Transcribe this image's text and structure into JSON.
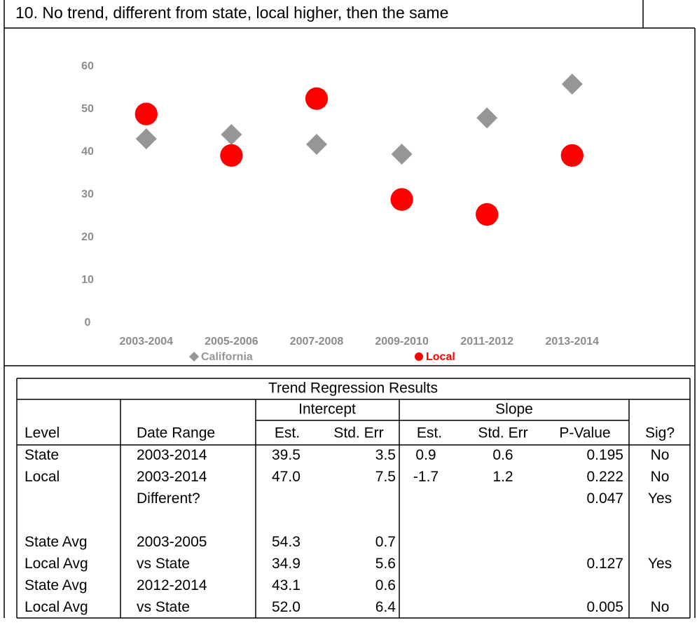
{
  "chart_data": {
    "type": "scatter",
    "title": "10. No trend, different from state, local higher, then the same",
    "categories": [
      "2003-2004",
      "2005-2006",
      "2007-2008",
      "2009-2010",
      "2011-2012",
      "2013-2014"
    ],
    "series": [
      {
        "name": "California",
        "color": "#969696",
        "marker": "diamond",
        "values": [
          43.1,
          44.1,
          41.8,
          39.5,
          48.0,
          55.9
        ]
      },
      {
        "name": "Local",
        "color": "#ff0000",
        "marker": "circle",
        "values": [
          48.9,
          39.2,
          52.5,
          28.9,
          25.4,
          39.2
        ]
      }
    ],
    "ylim": [
      0,
      60
    ],
    "yticks": [
      0,
      10,
      20,
      30,
      40,
      50,
      60
    ],
    "grid": false
  },
  "table": {
    "title": "Trend Regression Results",
    "groups": [
      "Intercept",
      "Slope"
    ],
    "headers": [
      "Level",
      "Date Range",
      "Est.",
      "Std. Err",
      "Est.",
      "Std. Err",
      "P-Value",
      "Sig?"
    ],
    "rows": [
      [
        "State",
        "2003-2014",
        "39.5",
        "3.5",
        "0.9",
        "0.6",
        "0.195",
        "No"
      ],
      [
        "Local",
        "2003-2014",
        "47.0",
        "7.5",
        "-1.7",
        "1.2",
        "0.222",
        "No"
      ],
      [
        null,
        "Different?",
        null,
        null,
        null,
        null,
        "0.047",
        "Yes"
      ],
      [
        "State Avg",
        "2003-2005",
        "54.3",
        "0.7",
        null,
        null,
        null,
        null
      ],
      [
        "Local Avg",
        "vs State",
        "34.9",
        "5.6",
        null,
        null,
        "0.127",
        "Yes"
      ],
      [
        "State Avg",
        "2012-2014",
        "43.1",
        "0.6",
        null,
        null,
        null,
        null
      ],
      [
        "Local Avg",
        "vs State",
        "52.0",
        "6.4",
        null,
        null,
        "0.005",
        "No"
      ]
    ]
  }
}
